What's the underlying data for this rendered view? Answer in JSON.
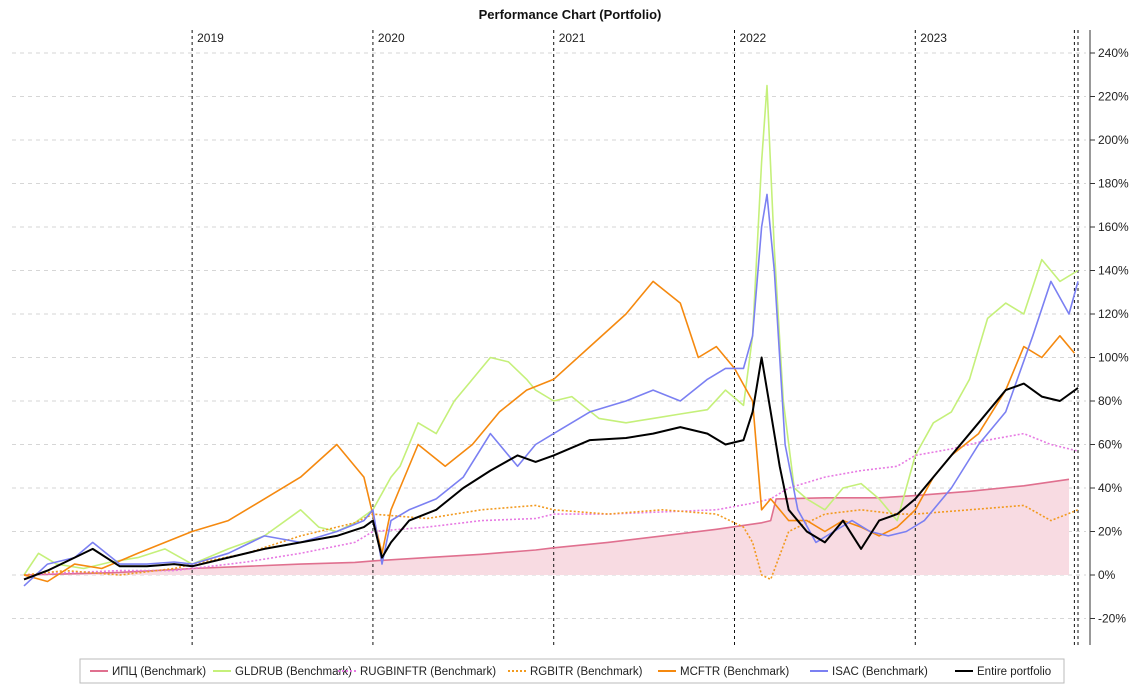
{
  "chart_data": {
    "type": "line",
    "title": "Performance Chart (Portfolio)",
    "xlabel": "",
    "ylabel": "",
    "y_axis_side": "right",
    "ylim": [
      -25,
      245
    ],
    "y_ticks": [
      -20,
      0,
      20,
      40,
      60,
      80,
      100,
      120,
      140,
      160,
      180,
      200,
      220,
      240
    ],
    "y_tick_labels": [
      "-20%",
      "0%",
      "20%",
      "40%",
      "60%",
      "80%",
      "100%",
      "120%",
      "140%",
      "160%",
      "180%",
      "200%",
      "220%",
      "240%"
    ],
    "xlim": [
      2018.07,
      2023.9
    ],
    "year_markers": [
      {
        "x": 2019.0,
        "label": "2019"
      },
      {
        "x": 2020.0,
        "label": "2020"
      },
      {
        "x": 2021.0,
        "label": "2021"
      },
      {
        "x": 2022.0,
        "label": "2022"
      },
      {
        "x": 2023.0,
        "label": "2023"
      }
    ],
    "end_markers": [
      2023.88,
      2023.9
    ],
    "grid": "horizontal dashed",
    "legend_position": "bottom",
    "series": [
      {
        "name": "ИПЦ (Benchmark)",
        "color": "#e0708f",
        "style": "solid",
        "fill": "#f8dbe2",
        "x": [
          2018.07,
          2018.3,
          2018.6,
          2018.9,
          2019.0,
          2019.3,
          2019.6,
          2019.9,
          2020.0,
          2020.3,
          2020.6,
          2020.9,
          2021.0,
          2021.3,
          2021.6,
          2021.9,
          2022.15,
          2022.2,
          2022.23,
          2022.5,
          2022.8,
          2023.0,
          2023.3,
          2023.6,
          2023.85
        ],
        "values": [
          0,
          0.5,
          1.2,
          2.5,
          3.0,
          4.0,
          5.0,
          5.8,
          6.5,
          8.0,
          9.5,
          11.5,
          12.5,
          15.0,
          18.0,
          21.0,
          24.0,
          25.0,
          35.0,
          35.5,
          35.5,
          36.5,
          38.5,
          41.0,
          44.0
        ]
      },
      {
        "name": "GLDRUB (Benchmark)",
        "color": "#c5f07a",
        "style": "solid",
        "x": [
          2018.07,
          2018.15,
          2018.25,
          2018.4,
          2018.55,
          2018.7,
          2018.85,
          2019.0,
          2019.2,
          2019.4,
          2019.6,
          2019.7,
          2019.8,
          2019.9,
          2020.0,
          2020.1,
          2020.15,
          2020.25,
          2020.35,
          2020.45,
          2020.55,
          2020.65,
          2020.75,
          2020.85,
          2020.9,
          2021.0,
          2021.1,
          2021.25,
          2021.4,
          2021.55,
          2021.7,
          2021.85,
          2021.95,
          2022.05,
          2022.1,
          2022.15,
          2022.18,
          2022.22,
          2022.27,
          2022.33,
          2022.4,
          2022.5,
          2022.6,
          2022.7,
          2022.8,
          2022.9,
          2023.0,
          2023.1,
          2023.2,
          2023.3,
          2023.4,
          2023.5,
          2023.6,
          2023.7,
          2023.8,
          2023.9
        ],
        "values": [
          0,
          10,
          5,
          3,
          6,
          8,
          12,
          5,
          12,
          18,
          30,
          22,
          20,
          24,
          30,
          45,
          50,
          70,
          65,
          80,
          90,
          100,
          98,
          90,
          85,
          80,
          82,
          72,
          70,
          72,
          74,
          76,
          85,
          78,
          110,
          190,
          225,
          150,
          80,
          40,
          35,
          30,
          40,
          42,
          35,
          25,
          55,
          70,
          75,
          90,
          118,
          125,
          120,
          145,
          135,
          140
        ]
      },
      {
        "name": "RUGBINFTR (Benchmark)",
        "color": "#e77ae3",
        "style": "dotted",
        "x": [
          2018.07,
          2018.3,
          2018.6,
          2018.9,
          2019.0,
          2019.3,
          2019.6,
          2019.9,
          2020.0,
          2020.3,
          2020.6,
          2020.9,
          2021.0,
          2021.3,
          2021.6,
          2021.9,
          2022.1,
          2022.2,
          2022.3,
          2022.5,
          2022.7,
          2022.9,
          2023.0,
          2023.2,
          2023.4,
          2023.6,
          2023.75,
          2023.9
        ],
        "values": [
          0,
          1,
          2,
          2,
          3,
          6,
          10,
          15,
          20,
          22,
          25,
          26,
          28,
          28,
          29,
          30,
          33,
          35,
          40,
          45,
          48,
          50,
          55,
          58,
          62,
          65,
          60,
          57
        ]
      },
      {
        "name": "RGBITR (Benchmark)",
        "color": "#f29a1f",
        "style": "dotted",
        "x": [
          2018.07,
          2018.3,
          2018.6,
          2018.9,
          2019.0,
          2019.3,
          2019.6,
          2019.9,
          2020.0,
          2020.3,
          2020.6,
          2020.9,
          2021.0,
          2021.3,
          2021.6,
          2021.9,
          2022.05,
          2022.1,
          2022.15,
          2022.2,
          2022.3,
          2022.5,
          2022.7,
          2022.9,
          2023.0,
          2023.3,
          2023.6,
          2023.75,
          2023.9
        ],
        "values": [
          0,
          2,
          0,
          3,
          5,
          10,
          18,
          24,
          28,
          26,
          30,
          32,
          30,
          28,
          30,
          28,
          22,
          15,
          0,
          -2,
          20,
          28,
          30,
          28,
          28,
          30,
          32,
          25,
          30
        ]
      },
      {
        "name": "MCFTR (Benchmark)",
        "color": "#f5890f",
        "style": "solid",
        "x": [
          2018.07,
          2018.2,
          2018.35,
          2018.5,
          2018.7,
          2018.85,
          2019.0,
          2019.2,
          2019.4,
          2019.6,
          2019.8,
          2019.95,
          2020.05,
          2020.1,
          2020.15,
          2020.25,
          2020.4,
          2020.55,
          2020.7,
          2020.85,
          2021.0,
          2021.2,
          2021.4,
          2021.55,
          2021.7,
          2021.8,
          2021.9,
          2022.0,
          2022.1,
          2022.15,
          2022.2,
          2022.3,
          2022.4,
          2022.5,
          2022.6,
          2022.7,
          2022.8,
          2022.9,
          2023.0,
          2023.1,
          2023.2,
          2023.35,
          2023.5,
          2023.6,
          2023.7,
          2023.8,
          2023.88
        ],
        "values": [
          0,
          -3,
          5,
          3,
          10,
          15,
          20,
          25,
          35,
          45,
          60,
          45,
          10,
          30,
          40,
          60,
          50,
          60,
          75,
          85,
          90,
          105,
          120,
          135,
          125,
          100,
          105,
          95,
          80,
          30,
          35,
          25,
          25,
          20,
          25,
          22,
          18,
          22,
          30,
          45,
          55,
          65,
          85,
          105,
          100,
          110,
          102
        ]
      },
      {
        "name": "ISAC (Benchmark)",
        "color": "#7b80f2",
        "style": "solid",
        "x": [
          2018.07,
          2018.2,
          2018.35,
          2018.45,
          2018.6,
          2018.75,
          2018.9,
          2019.0,
          2019.2,
          2019.4,
          2019.6,
          2019.8,
          2019.95,
          2020.0,
          2020.05,
          2020.1,
          2020.2,
          2020.35,
          2020.5,
          2020.65,
          2020.8,
          2020.9,
          2021.0,
          2021.2,
          2021.4,
          2021.55,
          2021.7,
          2021.85,
          2021.95,
          2022.05,
          2022.1,
          2022.15,
          2022.18,
          2022.22,
          2022.28,
          2022.35,
          2022.45,
          2022.55,
          2022.65,
          2022.75,
          2022.85,
          2022.95,
          2023.05,
          2023.2,
          2023.35,
          2023.5,
          2023.65,
          2023.75,
          2023.85,
          2023.9
        ],
        "values": [
          -5,
          5,
          8,
          15,
          5,
          5,
          6,
          5,
          10,
          18,
          15,
          20,
          25,
          30,
          5,
          25,
          30,
          35,
          45,
          65,
          50,
          60,
          65,
          75,
          80,
          85,
          80,
          90,
          95,
          95,
          110,
          160,
          175,
          140,
          60,
          30,
          15,
          20,
          25,
          20,
          18,
          20,
          25,
          40,
          60,
          75,
          110,
          135,
          120,
          135
        ]
      },
      {
        "name": "Entire portfolio",
        "color": "#000000",
        "style": "solid",
        "x": [
          2018.07,
          2018.2,
          2018.35,
          2018.45,
          2018.6,
          2018.75,
          2018.9,
          2019.0,
          2019.2,
          2019.4,
          2019.6,
          2019.8,
          2019.95,
          2020.0,
          2020.05,
          2020.1,
          2020.2,
          2020.35,
          2020.5,
          2020.65,
          2020.8,
          2020.9,
          2021.0,
          2021.2,
          2021.4,
          2021.55,
          2021.7,
          2021.85,
          2021.95,
          2022.05,
          2022.1,
          2022.15,
          2022.2,
          2022.25,
          2022.3,
          2022.4,
          2022.5,
          2022.6,
          2022.7,
          2022.8,
          2022.9,
          2023.0,
          2023.2,
          2023.35,
          2023.5,
          2023.6,
          2023.7,
          2023.8,
          2023.9
        ],
        "values": [
          -2,
          2,
          8,
          12,
          4,
          4,
          5,
          4,
          8,
          12,
          15,
          18,
          22,
          25,
          8,
          15,
          25,
          30,
          40,
          48,
          55,
          52,
          55,
          62,
          63,
          65,
          68,
          65,
          60,
          62,
          75,
          100,
          75,
          50,
          30,
          20,
          15,
          25,
          12,
          25,
          28,
          35,
          55,
          70,
          85,
          88,
          82,
          80,
          86
        ]
      }
    ]
  }
}
